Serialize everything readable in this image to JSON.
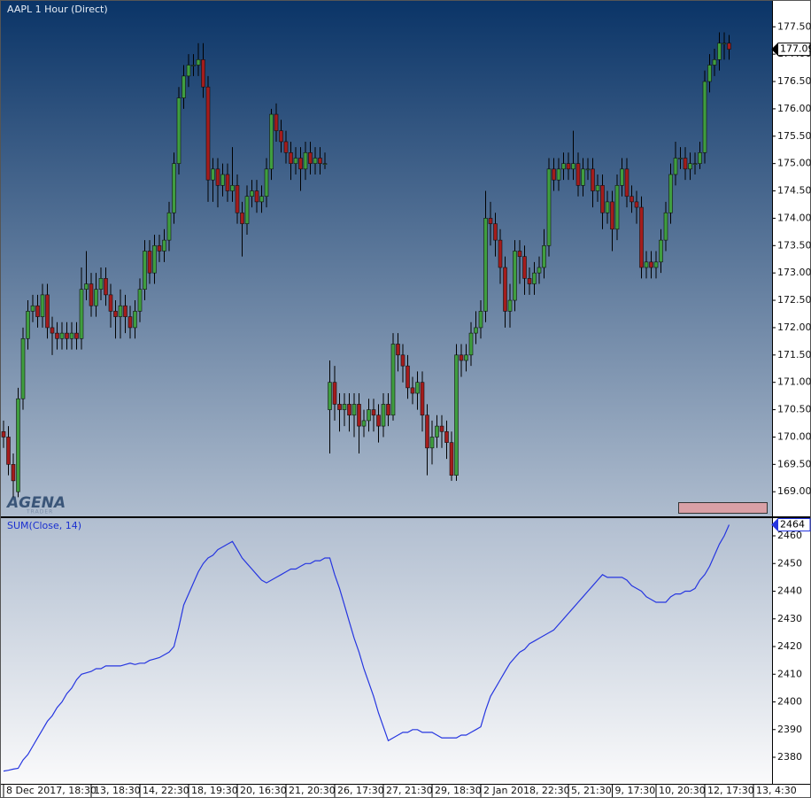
{
  "chart_data": [
    {
      "type": "candlestick",
      "title": "AAPL 1 Hour (Direct)",
      "logo": "AGENA",
      "logo_sub": "TRADER",
      "categories": [
        "8 Dec 2017, 18:30",
        null,
        null,
        null,
        null,
        null,
        null,
        null,
        null,
        null,
        null,
        null,
        null,
        null,
        null,
        null,
        null,
        null,
        "13, 18:30",
        null,
        null,
        null,
        null,
        null,
        null,
        null,
        null,
        null,
        "14, 22:30",
        null,
        null,
        null,
        null,
        null,
        null,
        null,
        null,
        null,
        "18, 19:30",
        null,
        null,
        null,
        null,
        null,
        null,
        null,
        null,
        null,
        "20, 16:30",
        null,
        null,
        null,
        null,
        null,
        null,
        null,
        null,
        null,
        "21, 20:30",
        null,
        null,
        null,
        null,
        null,
        null,
        null,
        null,
        null,
        "26, 17:30",
        null,
        null,
        null,
        null,
        null,
        null,
        null,
        null,
        null,
        "27, 21:30",
        null,
        null,
        null,
        null,
        null,
        null,
        null,
        null,
        null,
        "29, 18:30",
        null,
        null,
        null,
        null,
        null,
        null,
        null,
        null,
        null,
        "2 Jan 2018, 22:30",
        null,
        null,
        null,
        null,
        null,
        null,
        null,
        null,
        null,
        null,
        null,
        null,
        null,
        null,
        null,
        null,
        null,
        "5, 21:30",
        null,
        null,
        null,
        null,
        null,
        null,
        null,
        null,
        "9, 17:30",
        null,
        null,
        null,
        null,
        null,
        null,
        null,
        null,
        "10, 20:30",
        null,
        null,
        null,
        null,
        null,
        null,
        null,
        null,
        null,
        "12, 17:30",
        null,
        null,
        null,
        null,
        null,
        null,
        null,
        null,
        null,
        "13, 4:30"
      ],
      "open": [
        170.1,
        170.0,
        169.5,
        169.0,
        170.7,
        171.8,
        172.3,
        172.4,
        172.2,
        172.6,
        172.0,
        171.9,
        171.8,
        171.9,
        171.8,
        171.9,
        171.8,
        172.7,
        172.8,
        172.4,
        172.7,
        172.9,
        172.6,
        172.3,
        172.2,
        172.4,
        172.2,
        172.0,
        172.3,
        172.7,
        173.4,
        173.0,
        173.5,
        173.4,
        173.6,
        174.1,
        175.0,
        176.2,
        176.6,
        176.8,
        176.8,
        176.9,
        176.4,
        174.7,
        174.9,
        174.6,
        174.8,
        174.5,
        174.6,
        174.1,
        173.9,
        174.4,
        174.5,
        174.3,
        174.4,
        174.9,
        175.9,
        175.6,
        175.4,
        175.2,
        175.0,
        175.1,
        174.9,
        175.2,
        175.0,
        175.1,
        175.0,
        170.5,
        171.0,
        170.6,
        170.5,
        170.6,
        170.4,
        170.6,
        170.2,
        170.3,
        170.5,
        170.4,
        170.2,
        170.6,
        170.4,
        171.7,
        171.5,
        171.3,
        170.9,
        170.8,
        171.0,
        170.4,
        169.8,
        170.0,
        170.2,
        170.1,
        169.9,
        169.3,
        171.5,
        171.4,
        171.5,
        171.9,
        172.0,
        172.3,
        174.0,
        173.9,
        173.6,
        173.1,
        172.3,
        172.5,
        173.4,
        173.3,
        172.9,
        172.8,
        173.0,
        173.1,
        173.5,
        174.9,
        174.7,
        174.9,
        175.0,
        174.9,
        175.0,
        174.6,
        174.9,
        174.9,
        174.5,
        174.6,
        174.1,
        174.3,
        173.8,
        174.6,
        174.9,
        174.4,
        174.3,
        174.2,
        173.1,
        173.2,
        173.1,
        173.2,
        173.6,
        174.1,
        174.8,
        175.1,
        175.1,
        174.9,
        175.0,
        175.0,
        175.2,
        176.5,
        176.8,
        176.9,
        177.2,
        177.2,
        null,
        null,
        null,
        null,
        null
      ],
      "high": [
        170.3,
        170.2,
        169.7,
        170.9,
        172.0,
        172.5,
        172.6,
        172.6,
        172.8,
        172.8,
        172.2,
        172.1,
        172.1,
        172.1,
        172.1,
        172.1,
        173.1,
        173.4,
        173.0,
        173.0,
        173.1,
        173.1,
        172.8,
        172.5,
        172.7,
        172.6,
        172.4,
        172.5,
        172.9,
        173.6,
        173.6,
        173.7,
        173.7,
        173.8,
        174.3,
        175.2,
        176.4,
        176.8,
        177.0,
        177.0,
        177.2,
        177.2,
        176.6,
        175.1,
        175.1,
        175.0,
        175.0,
        175.3,
        174.8,
        174.3,
        174.6,
        174.7,
        174.7,
        174.6,
        175.1,
        176.0,
        176.1,
        175.8,
        175.6,
        175.4,
        175.3,
        175.3,
        175.4,
        175.4,
        175.3,
        175.3,
        175.2,
        171.4,
        171.3,
        170.8,
        170.8,
        170.8,
        170.8,
        170.8,
        170.5,
        170.7,
        170.7,
        170.6,
        170.8,
        170.8,
        171.9,
        171.9,
        171.7,
        171.5,
        171.1,
        171.2,
        171.2,
        170.6,
        170.3,
        170.4,
        170.4,
        170.3,
        170.1,
        171.7,
        171.7,
        171.7,
        172.1,
        172.3,
        172.5,
        174.5,
        174.3,
        174.1,
        173.8,
        173.3,
        172.8,
        173.6,
        173.6,
        173.5,
        173.1,
        173.2,
        173.3,
        173.8,
        175.1,
        175.1,
        175.1,
        175.2,
        175.2,
        175.6,
        175.2,
        175.1,
        175.1,
        175.1,
        174.8,
        174.8,
        174.5,
        174.5,
        174.8,
        175.1,
        175.1,
        174.6,
        174.5,
        174.4,
        173.4,
        173.4,
        173.4,
        173.8,
        174.3,
        175.0,
        175.4,
        175.3,
        175.3,
        175.2,
        175.2,
        175.4,
        176.7,
        177.0,
        177.1,
        177.4,
        177.4,
        177.35,
        null,
        null,
        null,
        null,
        null
      ],
      "low": [
        169.8,
        169.3,
        168.9,
        168.9,
        170.5,
        171.6,
        172.1,
        172.0,
        172.0,
        171.8,
        171.5,
        171.6,
        171.6,
        171.6,
        171.6,
        171.6,
        171.6,
        172.5,
        172.2,
        172.2,
        172.5,
        172.4,
        172.0,
        171.8,
        171.8,
        171.9,
        171.8,
        171.8,
        172.1,
        172.5,
        172.8,
        172.8,
        173.2,
        173.2,
        173.4,
        173.9,
        174.8,
        176.0,
        176.4,
        176.6,
        176.6,
        176.2,
        174.3,
        174.3,
        174.2,
        174.4,
        174.3,
        174.3,
        173.9,
        173.3,
        173.7,
        174.2,
        174.1,
        174.1,
        174.2,
        174.7,
        175.4,
        175.2,
        175.0,
        174.7,
        174.8,
        174.5,
        174.7,
        174.8,
        174.8,
        174.8,
        174.9,
        169.7,
        170.3,
        170.1,
        170.2,
        170.1,
        170.0,
        169.7,
        170.0,
        170.1,
        170.1,
        169.9,
        170.0,
        170.2,
        170.3,
        171.2,
        171.0,
        170.7,
        170.6,
        170.5,
        170.1,
        169.3,
        169.5,
        169.8,
        169.8,
        169.6,
        169.2,
        169.2,
        171.1,
        171.2,
        171.3,
        171.7,
        171.8,
        172.1,
        173.5,
        173.3,
        172.8,
        172.0,
        172.0,
        172.3,
        172.8,
        172.6,
        172.6,
        172.6,
        172.8,
        172.9,
        173.3,
        174.5,
        174.5,
        174.7,
        174.7,
        174.7,
        174.4,
        174.4,
        174.7,
        174.2,
        174.3,
        173.8,
        173.9,
        173.4,
        173.6,
        174.4,
        174.2,
        174.1,
        173.9,
        172.9,
        172.9,
        172.9,
        172.9,
        173.0,
        173.4,
        173.9,
        174.6,
        174.9,
        174.7,
        174.7,
        174.8,
        174.9,
        175.0,
        176.3,
        176.6,
        176.7,
        176.9,
        176.9,
        null,
        null,
        null,
        null,
        null
      ],
      "close": [
        170.0,
        169.5,
        169.2,
        170.7,
        171.8,
        172.3,
        172.4,
        172.2,
        172.6,
        172.0,
        171.9,
        171.8,
        171.9,
        171.8,
        171.9,
        171.8,
        172.7,
        172.8,
        172.4,
        172.7,
        172.9,
        172.6,
        172.3,
        172.2,
        172.4,
        172.2,
        172.0,
        172.3,
        172.7,
        173.4,
        173.0,
        173.5,
        173.4,
        173.6,
        174.1,
        175.0,
        176.2,
        176.6,
        176.8,
        176.8,
        176.9,
        176.4,
        174.7,
        174.9,
        174.6,
        174.8,
        174.5,
        174.6,
        174.1,
        173.9,
        174.4,
        174.5,
        174.3,
        174.4,
        174.9,
        175.9,
        175.6,
        175.4,
        175.2,
        175.0,
        175.1,
        174.9,
        175.2,
        175.0,
        175.1,
        175.0,
        175.0,
        171.0,
        170.6,
        170.5,
        170.6,
        170.4,
        170.6,
        170.2,
        170.3,
        170.5,
        170.4,
        170.2,
        170.6,
        170.4,
        171.7,
        171.5,
        171.3,
        170.9,
        170.8,
        171.0,
        170.4,
        169.8,
        170.0,
        170.2,
        170.1,
        169.9,
        169.3,
        171.5,
        171.4,
        171.5,
        171.9,
        172.0,
        172.3,
        174.0,
        173.9,
        173.6,
        173.1,
        172.3,
        172.5,
        173.4,
        173.3,
        172.9,
        172.8,
        173.0,
        173.1,
        173.5,
        174.9,
        174.7,
        174.9,
        175.0,
        174.9,
        175.0,
        174.6,
        174.9,
        174.9,
        174.5,
        174.6,
        174.1,
        174.3,
        173.8,
        174.6,
        174.9,
        174.4,
        174.3,
        174.2,
        173.1,
        173.2,
        173.1,
        173.2,
        173.6,
        174.1,
        174.8,
        175.1,
        175.1,
        174.9,
        175.0,
        175.0,
        175.2,
        176.5,
        176.8,
        176.9,
        177.2,
        177.2,
        177.09,
        null,
        null,
        null,
        null,
        null
      ],
      "up_color": "#3f9e3f",
      "down_color": "#a41c1c",
      "ylim": [
        168.55,
        177.99
      ],
      "yticks": [
        {
          "value": 169,
          "label": "169.00"
        },
        {
          "value": 169.5,
          "label": "169.50"
        },
        {
          "value": 170,
          "label": "170.00"
        },
        {
          "value": 170.5,
          "label": "170.50"
        },
        {
          "value": 171,
          "label": "171.00"
        },
        {
          "value": 171.5,
          "label": "171.50"
        },
        {
          "value": 172,
          "label": "172.00"
        },
        {
          "value": 172.5,
          "label": "172.50"
        },
        {
          "value": 173,
          "label": "173.00"
        },
        {
          "value": 173.5,
          "label": "173.50"
        },
        {
          "value": 174,
          "label": "174.00"
        },
        {
          "value": 174.5,
          "label": "174.50"
        },
        {
          "value": 175,
          "label": "175.00"
        },
        {
          "value": 175.5,
          "label": "175.50"
        },
        {
          "value": 176,
          "label": "176.00"
        },
        {
          "value": 176.5,
          "label": "176.50"
        },
        {
          "value": 177,
          "label": "177.00"
        },
        {
          "value": 177.5,
          "label": "177.50"
        }
      ]
    },
    {
      "type": "line",
      "title": "SUM(Close, 14)",
      "color": "#2636e0",
      "values": [
        2375,
        2375.3,
        2375.7,
        2376,
        2379,
        2381,
        2384,
        2387,
        2390,
        2393,
        2395,
        2398,
        2400,
        2403,
        2405,
        2408,
        2410,
        2410.5,
        2411,
        2412,
        2412,
        2413,
        2413,
        2413,
        2413,
        2413.5,
        2414,
        2413.5,
        2414,
        2414,
        2415,
        2415.5,
        2416,
        2417,
        2418,
        2420,
        2427,
        2435,
        2439,
        2443,
        2447,
        2450,
        2452,
        2453,
        2455,
        2456,
        2457,
        2458,
        2455,
        2452,
        2450,
        2448,
        2446,
        2444,
        2443,
        2444,
        2445,
        2446,
        2447,
        2448,
        2448,
        2449,
        2450,
        2450,
        2451,
        2451,
        2452,
        2452,
        2446,
        2441,
        2435,
        2429,
        2423,
        2418,
        2412,
        2407,
        2402,
        2396,
        2391,
        2386,
        2387,
        2388,
        2389,
        2389,
        2390,
        2390,
        2389,
        2389,
        2389,
        2388,
        2387,
        2387,
        2387,
        2387,
        2388,
        2388,
        2389,
        2390,
        2391,
        2397,
        2402,
        2405,
        2408,
        2411,
        2414,
        2416,
        2418,
        2419,
        2421,
        2422,
        2423,
        2424,
        2425,
        2426,
        2428,
        2430,
        2432,
        2434,
        2436,
        2438,
        2440,
        2442,
        2444,
        2446,
        2445,
        2445,
        2445,
        2445,
        2444,
        2442,
        2441,
        2440,
        2438,
        2437,
        2436,
        2436,
        2436,
        2438,
        2439,
        2439,
        2440,
        2440,
        2441,
        2444,
        2446,
        2449,
        2453,
        2457,
        2460,
        2464,
        null,
        null,
        null,
        null,
        null
      ],
      "ylim": [
        2370.4,
        2466.4
      ],
      "yticks": [
        2380,
        2390,
        2400,
        2410,
        2420,
        2430,
        2440,
        2450,
        2460
      ]
    }
  ]
}
